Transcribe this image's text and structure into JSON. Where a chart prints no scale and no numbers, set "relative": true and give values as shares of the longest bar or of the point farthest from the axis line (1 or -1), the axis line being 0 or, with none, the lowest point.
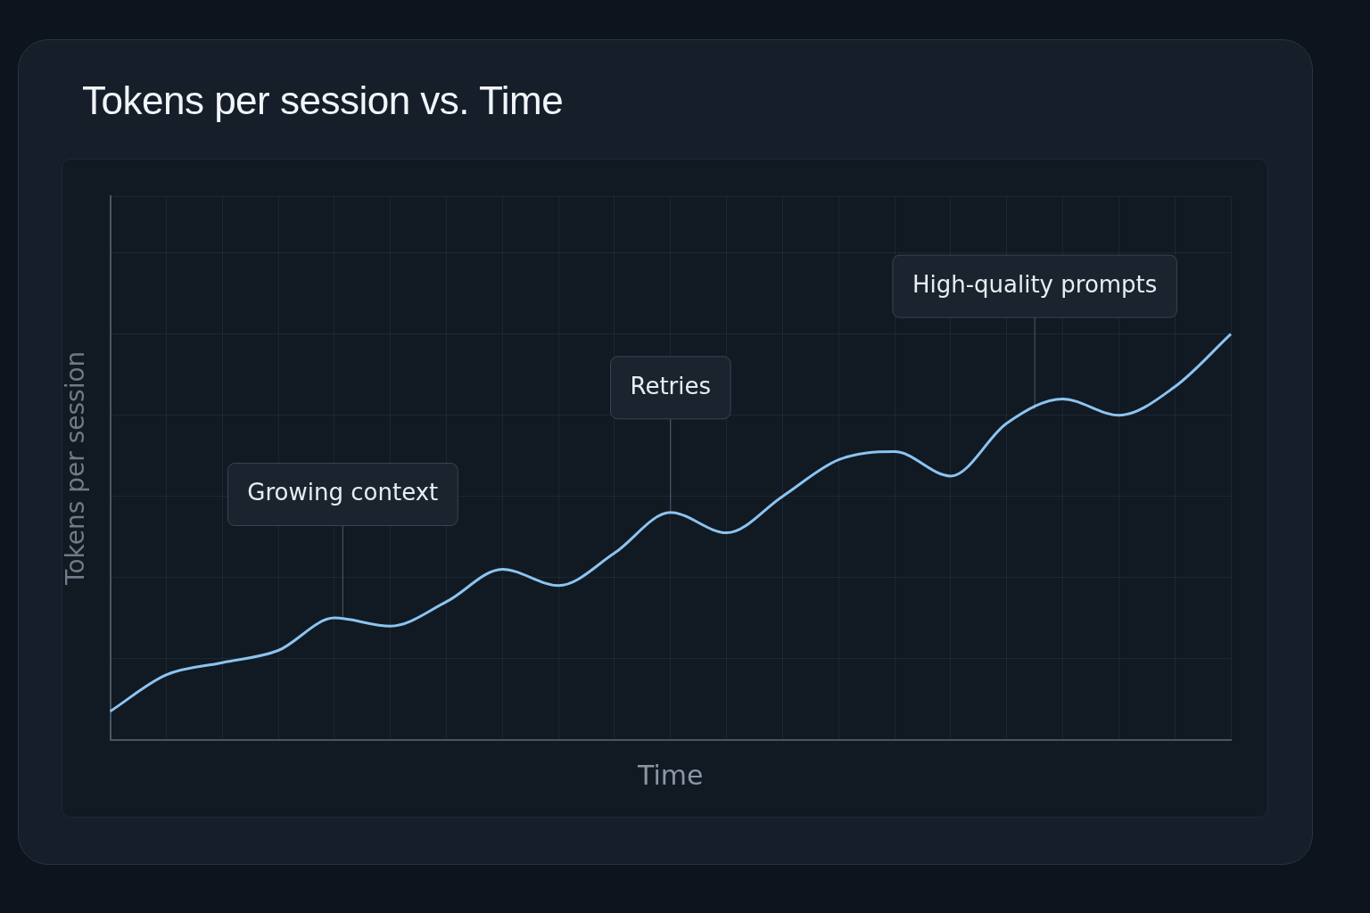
{
  "chart_data": {
    "type": "line",
    "title": "Tokens per session vs. Time",
    "xlabel": "Time",
    "ylabel": "Tokens per session",
    "categories": [
      null,
      null,
      null,
      null,
      null,
      null,
      null,
      null,
      null,
      null,
      null,
      null,
      null,
      null,
      null,
      null,
      null,
      null,
      null,
      null,
      null
    ],
    "relative": true,
    "series": [
      {
        "color": "#8cc4f0",
        "values": [
          0.07,
          0.16,
          0.19,
          0.22,
          0.3,
          0.28,
          0.34,
          0.42,
          0.38,
          0.46,
          0.56,
          0.51,
          0.6,
          0.69,
          0.71,
          0.65,
          0.78,
          0.84,
          0.8,
          0.87,
          1
        ]
      }
    ],
    "annotations": [
      "Growing context",
      "Retries",
      "High-quality prompts"
    ],
    "grid": true,
    "legend": false,
    "marker": "none",
    "line_style": "solid"
  }
}
